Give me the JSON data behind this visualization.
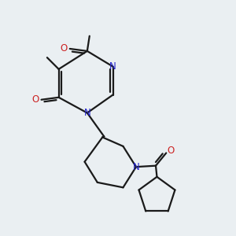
{
  "background_color": "#eaeff2",
  "bond_color": "#1a1a1a",
  "nitrogen_color": "#2222cc",
  "oxygen_color": "#cc2222",
  "line_width": 1.6,
  "figsize": [
    3.0,
    3.0
  ],
  "dpi": 100,
  "xlim": [
    0,
    10
  ],
  "ylim": [
    0,
    10
  ]
}
